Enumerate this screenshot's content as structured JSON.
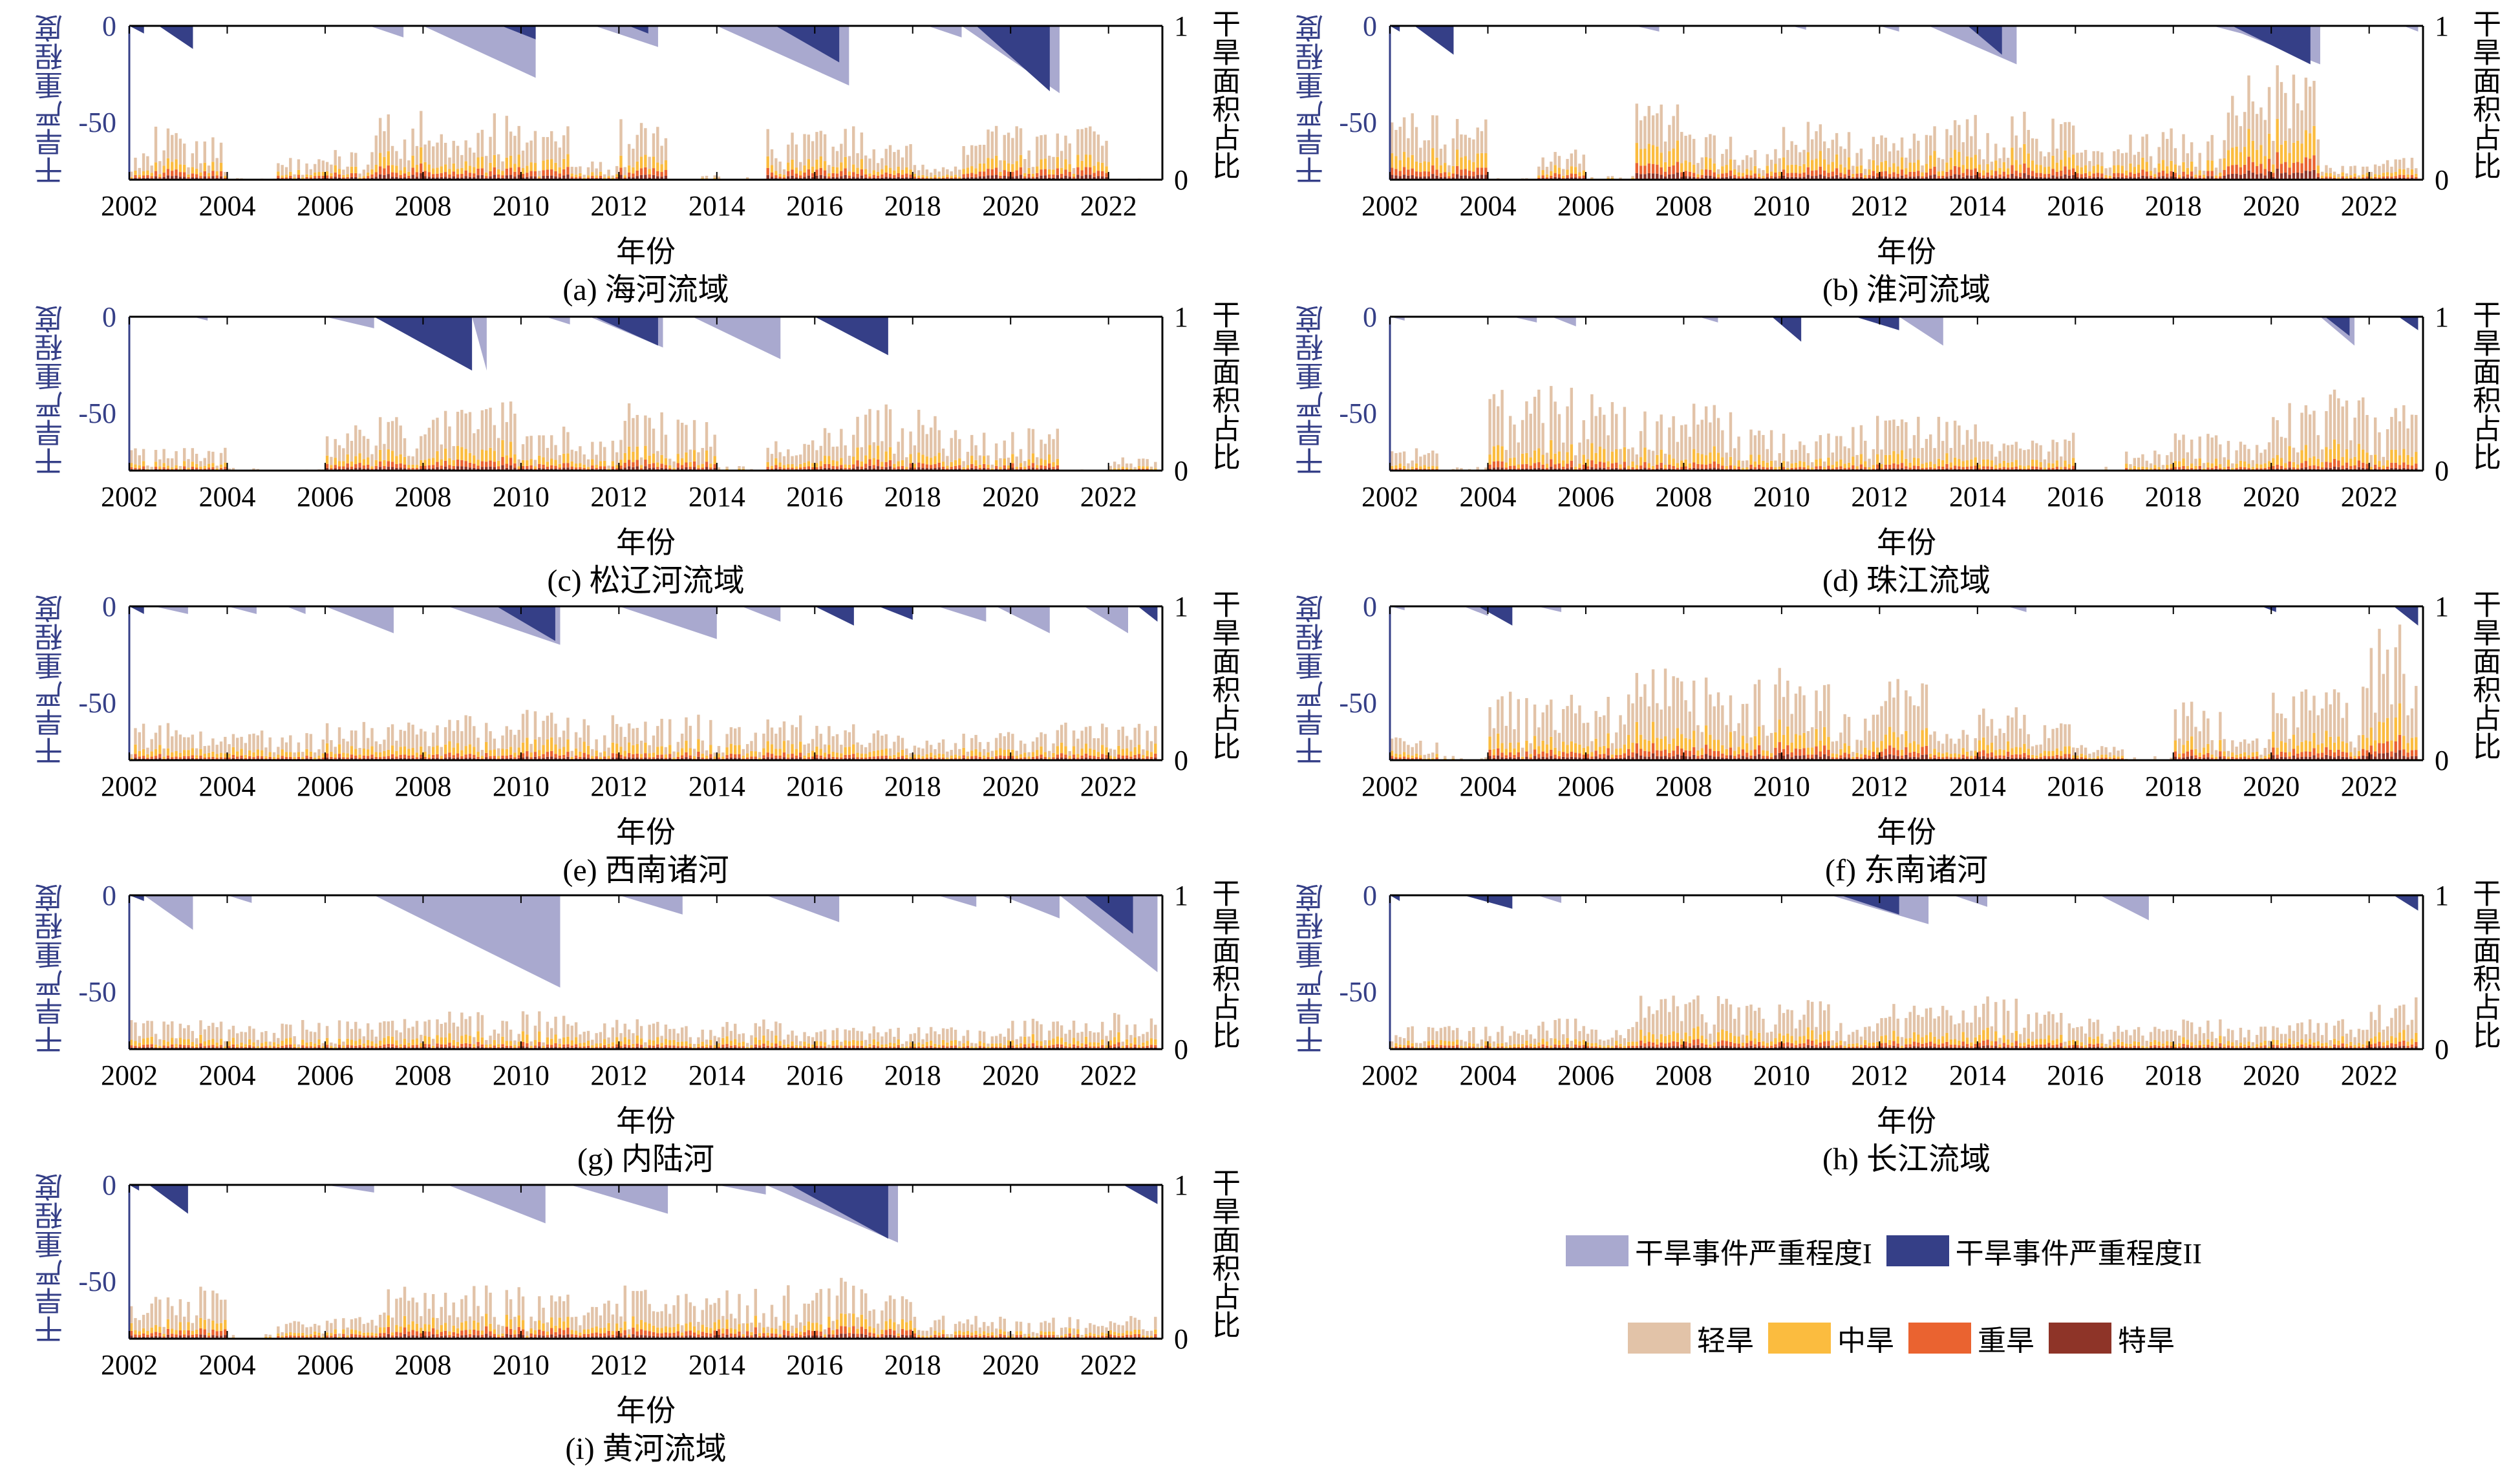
{
  "chart_data": {
    "type": "bar",
    "ylabel_left": "干旱严重程度",
    "ylabel_right": "干旱面积占比",
    "xlabel": "年份",
    "xlim": [
      2002,
      2023.1
    ],
    "ylim_left": [
      -80,
      0
    ],
    "ylim_right": [
      0,
      1
    ],
    "left_ticks": [
      "0",
      "-50"
    ],
    "right_ticks": [
      "1",
      "0"
    ],
    "x_ticks": [
      "2002",
      "2004",
      "2006",
      "2008",
      "2010",
      "2012",
      "2014",
      "2016",
      "2018",
      "2020",
      "2022"
    ],
    "years": [
      2002,
      2003,
      2004,
      2005,
      2006,
      2007,
      2008,
      2009,
      2010,
      2011,
      2012,
      2013,
      2014,
      2015,
      2016,
      2017,
      2018,
      2019,
      2020,
      2021,
      2022
    ],
    "legend_events": [
      {
        "label": "干旱事件严重程度I",
        "color": "#A9A9CF"
      },
      {
        "label": "干旱事件严重程度II",
        "color": "#353F87"
      }
    ],
    "legend_classes": [
      {
        "label": "轻旱",
        "color": "#E2C3A8"
      },
      {
        "label": "中旱",
        "color": "#FBBC3F"
      },
      {
        "label": "重旱",
        "color": "#EA6330"
      },
      {
        "label": "特旱",
        "color": "#8E3428"
      }
    ],
    "panels": [
      {
        "caption": "(a) 海河流域",
        "yearly_peak_area_fraction": [
          0.35,
          0.28,
          0.02,
          0.15,
          0.2,
          0.45,
          0.3,
          0.45,
          0.35,
          0.12,
          0.4,
          0.05,
          0.05,
          0.33,
          0.35,
          0.25,
          0.1,
          0.35,
          0.35,
          0.35,
          0.02
        ],
        "class_share": [
          0.5,
          0.25,
          0.15,
          0.1
        ],
        "events": [
          {
            "type": "II",
            "start": 2002.0,
            "end": 2002.3,
            "severity": -4
          },
          {
            "type": "II",
            "start": 2002.6,
            "end": 2003.3,
            "severity": -12
          },
          {
            "type": "I",
            "start": 2006.9,
            "end": 2007.6,
            "severity": -6
          },
          {
            "type": "I",
            "start": 2008.0,
            "end": 2010.3,
            "severity": -27
          },
          {
            "type": "II",
            "start": 2009.6,
            "end": 2010.3,
            "severity": -7
          },
          {
            "type": "I",
            "start": 2011.5,
            "end": 2012.8,
            "severity": -11
          },
          {
            "type": "II",
            "start": 2012.2,
            "end": 2012.6,
            "severity": -4
          },
          {
            "type": "I",
            "start": 2014.0,
            "end": 2016.7,
            "severity": -31
          },
          {
            "type": "II",
            "start": 2015.2,
            "end": 2016.5,
            "severity": -19
          },
          {
            "type": "I",
            "start": 2018.3,
            "end": 2019.0,
            "severity": -6
          },
          {
            "type": "I",
            "start": 2019.0,
            "end": 2021.0,
            "severity": -35
          },
          {
            "type": "II",
            "start": 2019.3,
            "end": 2020.8,
            "severity": -34
          }
        ]
      },
      {
        "caption": "(b) 淮河流域",
        "yearly_peak_area_fraction": [
          0.45,
          0.4,
          0.02,
          0.2,
          0.05,
          0.5,
          0.3,
          0.2,
          0.4,
          0.35,
          0.3,
          0.45,
          0.45,
          0.4,
          0.2,
          0.35,
          0.3,
          0.7,
          0.75,
          0.1,
          0.15
        ],
        "class_share": [
          0.45,
          0.3,
          0.15,
          0.1
        ],
        "events": [
          {
            "type": "II",
            "start": 2002.0,
            "end": 2002.2,
            "severity": -3
          },
          {
            "type": "II",
            "start": 2002.5,
            "end": 2003.3,
            "severity": -15
          },
          {
            "type": "I",
            "start": 2007.0,
            "end": 2007.5,
            "severity": -3
          },
          {
            "type": "I",
            "start": 2010.2,
            "end": 2010.5,
            "severity": -2
          },
          {
            "type": "I",
            "start": 2012.0,
            "end": 2012.4,
            "severity": -3
          },
          {
            "type": "I",
            "start": 2013.0,
            "end": 2014.8,
            "severity": -20
          },
          {
            "type": "II",
            "start": 2013.8,
            "end": 2014.5,
            "severity": -15
          },
          {
            "type": "I",
            "start": 2018.8,
            "end": 2019.4,
            "severity": -4
          },
          {
            "type": "I",
            "start": 2019.0,
            "end": 2021.0,
            "severity": -20
          },
          {
            "type": "II",
            "start": 2019.2,
            "end": 2020.8,
            "severity": -20
          },
          {
            "type": "I",
            "start": 2022.7,
            "end": 2023.0,
            "severity": -3
          }
        ]
      },
      {
        "caption": "(c) 松辽河流域",
        "yearly_peak_area_fraction": [
          0.15,
          0.15,
          0.05,
          0.02,
          0.3,
          0.35,
          0.4,
          0.45,
          0.3,
          0.2,
          0.5,
          0.35,
          0.05,
          0.2,
          0.35,
          0.45,
          0.4,
          0.25,
          0.3,
          0.02,
          0.1
        ],
        "class_share": [
          0.55,
          0.25,
          0.12,
          0.08
        ],
        "events": [
          {
            "type": "I",
            "start": 2003.3,
            "end": 2003.6,
            "severity": -2
          },
          {
            "type": "I",
            "start": 2006.0,
            "end": 2007.0,
            "severity": -6
          },
          {
            "type": "II",
            "start": 2007.0,
            "end": 2009.0,
            "severity": -28
          },
          {
            "type": "I",
            "start": 2009.0,
            "end": 2009.3,
            "severity": -28
          },
          {
            "type": "I",
            "start": 2010.5,
            "end": 2011.0,
            "severity": -4
          },
          {
            "type": "I",
            "start": 2011.4,
            "end": 2012.9,
            "severity": -16
          },
          {
            "type": "II",
            "start": 2011.5,
            "end": 2012.8,
            "severity": -15
          },
          {
            "type": "I",
            "start": 2013.5,
            "end": 2015.3,
            "severity": -22
          },
          {
            "type": "II",
            "start": 2016.0,
            "end": 2017.5,
            "severity": -20
          }
        ]
      },
      {
        "caption": "(d) 珠江流域",
        "yearly_peak_area_fraction": [
          0.15,
          0.05,
          0.55,
          0.55,
          0.55,
          0.4,
          0.45,
          0.3,
          0.25,
          0.4,
          0.35,
          0.35,
          0.2,
          0.25,
          0.05,
          0.15,
          0.25,
          0.2,
          0.45,
          0.55,
          0.45
        ],
        "class_share": [
          0.6,
          0.25,
          0.1,
          0.05
        ],
        "events": [
          {
            "type": "I",
            "start": 2002.0,
            "end": 2002.3,
            "severity": -2
          },
          {
            "type": "I",
            "start": 2004.5,
            "end": 2005.0,
            "severity": -3
          },
          {
            "type": "I",
            "start": 2005.3,
            "end": 2005.8,
            "severity": -5
          },
          {
            "type": "I",
            "start": 2008.3,
            "end": 2008.7,
            "severity": -3
          },
          {
            "type": "II",
            "start": 2009.8,
            "end": 2010.4,
            "severity": -13
          },
          {
            "type": "II",
            "start": 2011.5,
            "end": 2012.4,
            "severity": -7
          },
          {
            "type": "I",
            "start": 2012.4,
            "end": 2013.3,
            "severity": -15
          },
          {
            "type": "I",
            "start": 2021.0,
            "end": 2021.7,
            "severity": -15
          },
          {
            "type": "II",
            "start": 2021.1,
            "end": 2021.6,
            "severity": -10
          },
          {
            "type": "II",
            "start": 2022.6,
            "end": 2023.0,
            "severity": -7
          }
        ]
      },
      {
        "caption": "(e) 西南诸河",
        "yearly_peak_area_fraction": [
          0.25,
          0.2,
          0.2,
          0.2,
          0.25,
          0.25,
          0.3,
          0.25,
          0.35,
          0.3,
          0.3,
          0.3,
          0.25,
          0.3,
          0.25,
          0.2,
          0.15,
          0.2,
          0.2,
          0.25,
          0.25
        ],
        "class_share": [
          0.5,
          0.3,
          0.12,
          0.08
        ],
        "events": [
          {
            "type": "II",
            "start": 2002.0,
            "end": 2002.3,
            "severity": -4
          },
          {
            "type": "I",
            "start": 2002.5,
            "end": 2003.2,
            "severity": -4
          },
          {
            "type": "I",
            "start": 2004.0,
            "end": 2004.6,
            "severity": -4
          },
          {
            "type": "I",
            "start": 2005.2,
            "end": 2005.6,
            "severity": -4
          },
          {
            "type": "I",
            "start": 2006.0,
            "end": 2007.4,
            "severity": -14
          },
          {
            "type": "I",
            "start": 2008.5,
            "end": 2010.8,
            "severity": -20
          },
          {
            "type": "II",
            "start": 2009.5,
            "end": 2010.7,
            "severity": -18
          },
          {
            "type": "I",
            "start": 2012.0,
            "end": 2014.0,
            "severity": -17
          },
          {
            "type": "I",
            "start": 2014.5,
            "end": 2015.3,
            "severity": -8
          },
          {
            "type": "II",
            "start": 2016.0,
            "end": 2016.8,
            "severity": -10
          },
          {
            "type": "II",
            "start": 2017.3,
            "end": 2018.0,
            "severity": -7
          },
          {
            "type": "I",
            "start": 2018.5,
            "end": 2019.5,
            "severity": -8
          },
          {
            "type": "I",
            "start": 2019.7,
            "end": 2020.8,
            "severity": -14
          },
          {
            "type": "I",
            "start": 2021.5,
            "end": 2022.4,
            "severity": -14
          },
          {
            "type": "II",
            "start": 2022.6,
            "end": 2023.0,
            "severity": -8
          }
        ]
      },
      {
        "caption": "(f) 东南诸河",
        "yearly_peak_area_fraction": [
          0.15,
          0.05,
          0.5,
          0.45,
          0.45,
          0.6,
          0.55,
          0.65,
          0.6,
          0.3,
          0.55,
          0.2,
          0.35,
          0.25,
          0.1,
          0.05,
          0.4,
          0.15,
          0.5,
          0.5,
          0.95
        ],
        "class_share": [
          0.55,
          0.25,
          0.12,
          0.08
        ],
        "events": [
          {
            "type": "I",
            "start": 2002.0,
            "end": 2002.3,
            "severity": -2
          },
          {
            "type": "I",
            "start": 2003.5,
            "end": 2004.0,
            "severity": -5
          },
          {
            "type": "II",
            "start": 2003.8,
            "end": 2004.5,
            "severity": -10
          },
          {
            "type": "I",
            "start": 2005.0,
            "end": 2005.5,
            "severity": -3
          },
          {
            "type": "I",
            "start": 2014.6,
            "end": 2015.0,
            "severity": -3
          },
          {
            "type": "II",
            "start": 2019.8,
            "end": 2020.1,
            "severity": -3
          },
          {
            "type": "II",
            "start": 2022.5,
            "end": 2023.0,
            "severity": -10
          }
        ]
      },
      {
        "caption": "(g) 内陆河",
        "yearly_peak_area_fraction": [
          0.2,
          0.2,
          0.2,
          0.2,
          0.2,
          0.2,
          0.25,
          0.25,
          0.25,
          0.2,
          0.2,
          0.15,
          0.2,
          0.2,
          0.15,
          0.15,
          0.15,
          0.15,
          0.2,
          0.2,
          0.25
        ],
        "class_share": [
          0.5,
          0.3,
          0.12,
          0.08
        ],
        "events": [
          {
            "type": "II",
            "start": 2002.0,
            "end": 2002.3,
            "severity": -3
          },
          {
            "type": "I",
            "start": 2002.3,
            "end": 2003.3,
            "severity": -18
          },
          {
            "type": "I",
            "start": 2004.0,
            "end": 2004.5,
            "severity": -4
          },
          {
            "type": "I",
            "start": 2007.0,
            "end": 2010.8,
            "severity": -48
          },
          {
            "type": "I",
            "start": 2012.0,
            "end": 2013.3,
            "severity": -10
          },
          {
            "type": "I",
            "start": 2015.0,
            "end": 2016.5,
            "severity": -14
          },
          {
            "type": "I",
            "start": 2018.5,
            "end": 2019.3,
            "severity": -6
          },
          {
            "type": "I",
            "start": 2019.8,
            "end": 2021.0,
            "severity": -12
          },
          {
            "type": "I",
            "start": 2021.0,
            "end": 2023.0,
            "severity": -40
          },
          {
            "type": "II",
            "start": 2021.5,
            "end": 2022.5,
            "severity": -20
          }
        ]
      },
      {
        "caption": "(h) 长江流域",
        "yearly_peak_area_fraction": [
          0.15,
          0.15,
          0.15,
          0.2,
          0.15,
          0.35,
          0.35,
          0.3,
          0.35,
          0.2,
          0.3,
          0.3,
          0.35,
          0.25,
          0.2,
          0.15,
          0.2,
          0.15,
          0.2,
          0.2,
          0.4
        ],
        "class_share": [
          0.55,
          0.25,
          0.12,
          0.08
        ],
        "events": [
          {
            "type": "II",
            "start": 2002.0,
            "end": 2002.2,
            "severity": -3
          },
          {
            "type": "II",
            "start": 2003.5,
            "end": 2004.5,
            "severity": -7
          },
          {
            "type": "I",
            "start": 2005.0,
            "end": 2005.5,
            "severity": -4
          },
          {
            "type": "I",
            "start": 2011.0,
            "end": 2013.0,
            "severity": -15
          },
          {
            "type": "II",
            "start": 2011.2,
            "end": 2012.4,
            "severity": -10
          },
          {
            "type": "I",
            "start": 2013.5,
            "end": 2014.2,
            "severity": -6
          },
          {
            "type": "I",
            "start": 2016.5,
            "end": 2017.5,
            "severity": -13
          },
          {
            "type": "II",
            "start": 2022.5,
            "end": 2023.0,
            "severity": -8
          }
        ]
      },
      {
        "caption": "(i) 黄河流域",
        "yearly_peak_area_fraction": [
          0.3,
          0.35,
          0.05,
          0.15,
          0.15,
          0.35,
          0.3,
          0.35,
          0.3,
          0.25,
          0.35,
          0.3,
          0.35,
          0.35,
          0.4,
          0.3,
          0.15,
          0.15,
          0.15,
          0.15,
          0.15
        ],
        "class_share": [
          0.5,
          0.25,
          0.15,
          0.1
        ],
        "events": [
          {
            "type": "II",
            "start": 2002.0,
            "end": 2002.2,
            "severity": -3
          },
          {
            "type": "II",
            "start": 2002.4,
            "end": 2003.2,
            "severity": -15
          },
          {
            "type": "I",
            "start": 2006.0,
            "end": 2007.0,
            "severity": -4
          },
          {
            "type": "I",
            "start": 2008.5,
            "end": 2010.5,
            "severity": -20
          },
          {
            "type": "I",
            "start": 2011.0,
            "end": 2013.0,
            "severity": -15
          },
          {
            "type": "I",
            "start": 2014.0,
            "end": 2015.0,
            "severity": -5
          },
          {
            "type": "I",
            "start": 2015.0,
            "end": 2017.7,
            "severity": -30
          },
          {
            "type": "II",
            "start": 2015.5,
            "end": 2017.5,
            "severity": -28
          },
          {
            "type": "II",
            "start": 2022.3,
            "end": 2023.0,
            "severity": -10
          }
        ]
      }
    ]
  }
}
